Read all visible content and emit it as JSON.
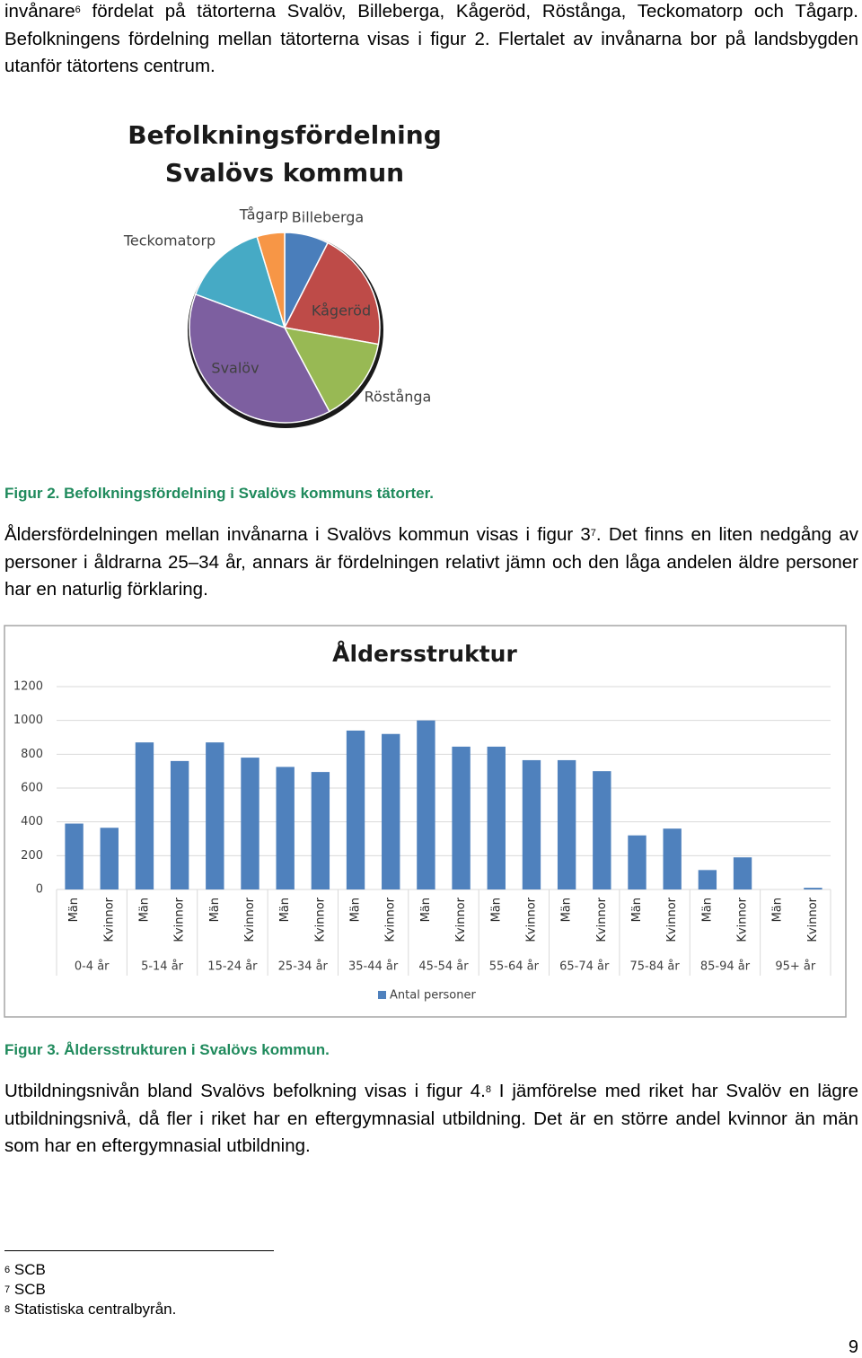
{
  "document": {
    "paragraphs": [
      {
        "before": "invånare",
        "sup": "6",
        "after": " fördelat på tätorterna Svalöv, Billeberga, Kågeröd, Röstånga, Teckomatorp och Tågarp. Befolkningens fördelning mellan tätorterna visas i figur 2. Flertalet av invånarna bor på landsbygden utanför tätortens centrum."
      },
      {
        "before": "Åldersfördelningen mellan invånarna i Svalövs kommun visas i figur 3",
        "sup": "7",
        "after": ". Det finns en liten nedgång av personer i åldrarna 25–34 år, annars är fördelningen relativt jämn och den låga andelen äldre personer har en naturlig förklaring."
      },
      {
        "before": "Utbildningsnivån bland Svalövs befolkning visas i figur 4.",
        "sup": "8",
        "after": " I jämförelse med riket har Svalöv en lägre utbildningsnivå, då fler i riket har en eftergymnasial utbildning. Det är en större andel kvinnor än män som har en eftergymnasial utbildning."
      }
    ],
    "captions": [
      "Figur 2. Befolkningsfördelning i Svalövs kommuns tätorter.",
      "Figur 3. Åldersstrukturen i Svalövs kommun."
    ],
    "footnotes": [
      {
        "number": "6",
        "text": "SCB"
      },
      {
        "number": "7",
        "text": "SCB"
      },
      {
        "number": "8",
        "text": "Statistiska centralbyrån."
      }
    ],
    "page_number": "9"
  },
  "chart_data": [
    {
      "type": "pie",
      "title": [
        "Befolkningsfördelning",
        "Svalövs kommun"
      ],
      "categories": [
        "Billeberga",
        "Kågeröd",
        "Röstånga",
        "Svalöv",
        "Teckomatorp",
        "Tågarp"
      ],
      "values": [
        7.5,
        20.3,
        14.4,
        38.5,
        14.6,
        4.7
      ],
      "colors": [
        "#4a7ebb",
        "#be4b48",
        "#98b954",
        "#7d5fa0",
        "#46aac5",
        "#f79646"
      ]
    },
    {
      "type": "bar",
      "title": "Åldersstruktur",
      "categories": [
        "Män",
        "Kvinnor",
        "Män",
        "Kvinnor",
        "Män",
        "Kvinnor",
        "Män",
        "Kvinnor",
        "Män",
        "Kvinnor",
        "Män",
        "Kvinnor",
        "Män",
        "Kvinnor",
        "Män",
        "Kvinnor",
        "Män",
        "Kvinnor",
        "Män",
        "Kvinnor",
        "Män",
        "Kvinnor"
      ],
      "groups": [
        "0-4 år",
        "5-14 år",
        "15-24 år",
        "25-34 år",
        "35-44 år",
        "45-54 år",
        "55-64 år",
        "65-74 år",
        "75-84 år",
        "85-94 år",
        "95+ år"
      ],
      "series": [
        {
          "name": "Antal personer",
          "color": "#4f81bd",
          "values": [
            390,
            365,
            870,
            760,
            870,
            780,
            725,
            695,
            940,
            920,
            1000,
            845,
            845,
            765,
            765,
            700,
            320,
            360,
            115,
            190,
            0,
            10
          ]
        }
      ],
      "ylim": [
        0,
        1200
      ],
      "yticks": [
        0,
        200,
        400,
        600,
        800,
        1000,
        1200
      ],
      "grid": true,
      "legend": "bottom"
    }
  ]
}
